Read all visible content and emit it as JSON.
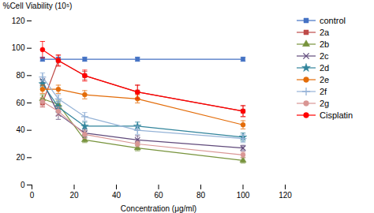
{
  "chart_data": {
    "type": "line",
    "xlabel": "Concentration (μg/ml)",
    "ylabel": "%Cell Viability (10⁵)",
    "x": [
      5,
      12.5,
      25,
      50,
      100
    ],
    "series": [
      {
        "name": "control",
        "color": "#4472C4",
        "marker": "square",
        "line_style": "solid",
        "values": [
          92,
          92,
          92,
          92,
          92
        ],
        "yerr": [
          1.5,
          1.5,
          1.5,
          1.5,
          1.5
        ]
      },
      {
        "name": "2a",
        "color": "#BE4B48",
        "marker": "square",
        "line_style": "solid",
        "values": [
          60,
          91,
          80,
          68,
          54
        ],
        "yerr": [
          3,
          4,
          3,
          5,
          4
        ]
      },
      {
        "name": "2b",
        "color": "#77933C",
        "marker": "triangle",
        "line_style": "solid",
        "values": [
          63,
          59,
          33,
          27,
          18
        ],
        "yerr": [
          3,
          3,
          2,
          2,
          2
        ]
      },
      {
        "name": "2c",
        "color": "#604A7B",
        "marker": "times",
        "line_style": "solid",
        "values": [
          76,
          52,
          38,
          33,
          27
        ],
        "yerr": [
          3,
          4,
          3,
          3,
          2
        ]
      },
      {
        "name": "2d",
        "color": "#31849B",
        "marker": "star",
        "line_style": "solid",
        "values": [
          74,
          57,
          43,
          43,
          35
        ],
        "yerr": [
          3,
          4,
          3,
          3,
          3
        ]
      },
      {
        "name": "2e",
        "color": "#E36C09",
        "marker": "circle",
        "line_style": "solid",
        "values": [
          70,
          70,
          66,
          63,
          44
        ],
        "yerr": [
          3,
          3,
          3,
          3,
          3
        ]
      },
      {
        "name": "2f",
        "color": "#95B3D7",
        "marker": "plus",
        "line_style": "solid",
        "values": [
          79,
          63,
          50,
          40,
          34
        ],
        "yerr": [
          3,
          3,
          3,
          3,
          3
        ]
      },
      {
        "name": "2g",
        "color": "#D99694",
        "marker": "circle",
        "line_style": "solid",
        "values": [
          61,
          54,
          37,
          30,
          22
        ],
        "yerr": [
          3,
          3,
          3,
          2,
          2
        ]
      },
      {
        "name": "Cisplatin",
        "color": "#FF0000",
        "marker": "circle",
        "line_style": "solid",
        "values": [
          99,
          91,
          80,
          68,
          54
        ],
        "yerr": [
          6,
          4,
          4,
          5,
          4
        ]
      }
    ],
    "xlim": [
      0,
      120
    ],
    "ylim": [
      0,
      120
    ],
    "xticks": [
      0,
      20,
      40,
      60,
      80,
      100,
      120
    ],
    "yticks": [
      0,
      20,
      40,
      60,
      80,
      100,
      120
    ],
    "grid": false,
    "legend": "right"
  }
}
